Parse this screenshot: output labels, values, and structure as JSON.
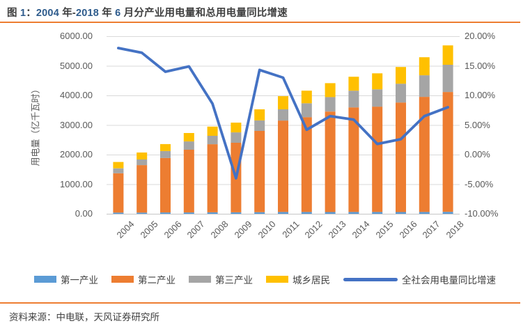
{
  "figure": {
    "title": "图 1：2004 年-2018 年 6 月分产业用电量和总用电量同比增速",
    "source": "资料来源：中电联，天风证券研究所"
  },
  "colors": {
    "rule_orange": "#ED7D31",
    "title_text": "#3F3F3F",
    "title_number_accent": "#2E5B8C",
    "axis_text": "#595959",
    "grid_line": "#D9D9D9",
    "axis_line": "#C6C6C6",
    "body_text": "#404040"
  },
  "chart_data": {
    "type": "bar",
    "subtype": "stacked-column-with-line",
    "title": "图 1：2004 年-2018 年 6 月分产业用电量和总用电量同比增速",
    "categories": [
      "2004",
      "2005",
      "2006",
      "2007",
      "2008",
      "2009",
      "2010",
      "2011",
      "2012",
      "2013",
      "2014",
      "2015",
      "2016",
      "2017",
      "2018"
    ],
    "series": [
      {
        "name": "第一产业",
        "color": "#5B9BD5",
        "axis": "left",
        "values": [
          40,
          40,
          45,
          45,
          50,
          50,
          55,
          60,
          60,
          60,
          60,
          60,
          60,
          60,
          65
        ]
      },
      {
        "name": "第二产业",
        "color": "#ED7D31",
        "axis": "left",
        "values": [
          1330,
          1605,
          1840,
          2120,
          2300,
          2350,
          2745,
          3090,
          3205,
          3395,
          3535,
          3560,
          3700,
          3890,
          4050
        ]
      },
      {
        "name": "第三产业",
        "color": "#A5A5A5",
        "axis": "left",
        "values": [
          165,
          190,
          235,
          280,
          285,
          350,
          355,
          380,
          470,
          490,
          565,
          585,
          635,
          730,
          920
        ]
      },
      {
        "name": "城乡居民",
        "color": "#FFC000",
        "axis": "left",
        "values": [
          215,
          235,
          235,
          285,
          310,
          330,
          375,
          445,
          425,
          470,
          470,
          540,
          565,
          610,
          655
        ]
      }
    ],
    "line_series": {
      "name": "全社会用电量同比增速",
      "color": "#4472C4",
      "axis": "right",
      "values": [
        18.0,
        17.2,
        14.0,
        14.9,
        8.6,
        -4.0,
        14.3,
        13.0,
        4.2,
        6.5,
        5.9,
        1.8,
        2.6,
        6.5,
        8.0
      ]
    },
    "left_axis": {
      "title": "用电量（亿千瓦时）",
      "min": 0,
      "max": 6000,
      "step": 1000,
      "ticks": [
        6000,
        5000,
        4000,
        3000,
        2000,
        1000,
        0
      ],
      "tick_labels": [
        "6000.00",
        "5000.00",
        "4000.00",
        "3000.00",
        "2000.00",
        "1000.00",
        "0.00"
      ]
    },
    "right_axis": {
      "min": -10,
      "max": 20,
      "step": 5,
      "ticks": [
        20,
        15,
        10,
        5,
        0,
        -5,
        -10
      ],
      "tick_labels": [
        "20.00%",
        "15.00%",
        "10.00%",
        "5.00%",
        "0.00%",
        "-5.00%",
        "-10.00%"
      ]
    },
    "grid": true,
    "legend_position": "bottom"
  }
}
